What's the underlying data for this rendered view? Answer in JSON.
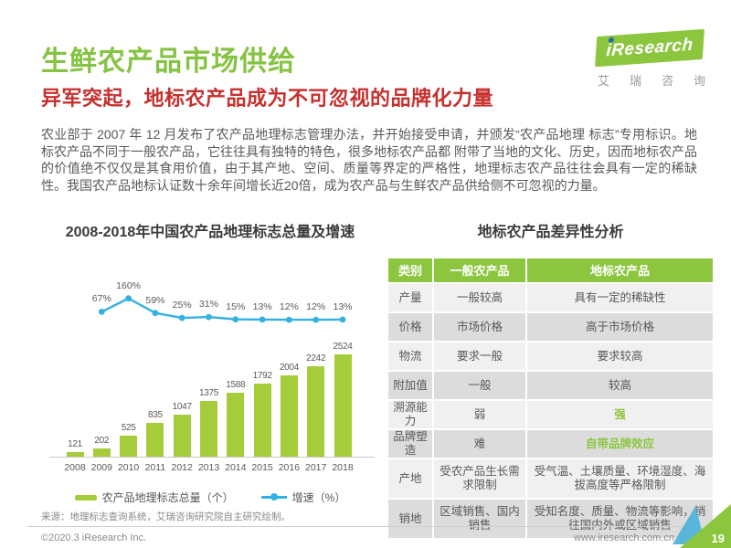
{
  "page": {
    "title": "生鲜农产品市场供给",
    "subtitle": "异军突起，地标农产品成为不可忽视的品牌化力量",
    "body": "农业部于 2007 年 12 月发布了农产品地理标志管理办法，并开始接受申请，并颁发“农产品地理 标志”专用标识。地标农产品不同于一般农产品，它往往具有独特的特色，很多地标农产品都 附带了当地的文化、历史，因而地标农产品的价值绝不仅仅是其食用价值，由于其产地、空间、质量等界定的严格性，地理标志农产品往往会具有一定的稀缺性。我国农产品地标认证数十余年间增长近20倍，成为农产品与生鲜农产品供给侧不可忽视的力量。"
  },
  "logo": {
    "brand": "iResearch",
    "brand_cn_chars": "艾瑞咨询"
  },
  "chart_data": {
    "type": "bar",
    "title": "2008-2018年中国农产品地理标志总量及增速",
    "categories": [
      "2008",
      "2009",
      "2010",
      "2011",
      "2012",
      "2013",
      "2014",
      "2015",
      "2016",
      "2017",
      "2018"
    ],
    "series": [
      {
        "name": "农产品地理标志总量（个）",
        "type": "bar",
        "color": "#a5cd3b",
        "values": [
          121,
          202,
          525,
          835,
          1047,
          1375,
          1588,
          1792,
          2004,
          2242,
          2524
        ]
      },
      {
        "name": "增速（%）",
        "type": "line",
        "color": "#33b1e3",
        "unit": "%",
        "values": [
          null,
          67,
          160,
          59,
          25,
          31,
          15,
          13,
          12,
          12,
          13
        ]
      }
    ],
    "legend_position": "bottom",
    "source": "来源：地理标志查询系统，艾瑞咨询研究院自主研究绘制。"
  },
  "table": {
    "title": "地标农产品差异性分析",
    "headers": [
      "类别",
      "一般农产品",
      "地标农产品"
    ],
    "rows": [
      {
        "label": "产量",
        "general": "一般较高",
        "geo": "具有一定的稀缺性",
        "accent": false,
        "tall": false
      },
      {
        "label": "价格",
        "general": "市场价格",
        "geo": "高于市场价格",
        "accent": false,
        "tall": false
      },
      {
        "label": "物流",
        "general": "要求一般",
        "geo": "要求较高",
        "accent": false,
        "tall": false
      },
      {
        "label": "附加值",
        "general": "一般",
        "geo": "较高",
        "accent": false,
        "tall": false
      },
      {
        "label": "溯源能力",
        "general": "弱",
        "geo": "强",
        "accent": true,
        "tall": false
      },
      {
        "label": "品牌塑造",
        "general": "难",
        "geo": "自带品牌效应",
        "accent": true,
        "tall": false
      },
      {
        "label": "产地",
        "general": "受农产品生长需求限制",
        "geo": "受气温、土壤质量、环境湿度、海拔高度等严格限制",
        "accent": false,
        "tall": true
      },
      {
        "label": "销地",
        "general": "区域销售、国内销售",
        "geo": "受知名度、质量、物流等影响，销往国内外或区域销售",
        "accent": false,
        "tall": true
      }
    ]
  },
  "footer": {
    "copyright": "©2020.3 iResearch Inc.",
    "website": "www.iresearch.com.cn",
    "page_number": "19"
  },
  "colors": {
    "title_green": "#85c342",
    "subtitle_red": "#c5312e",
    "bar_green": "#a5cd3b",
    "line_blue": "#33b1e3",
    "table_header_green": "#8cc63f",
    "body_gray": "#595959",
    "row_light": "#f0f0f0",
    "row_dark": "#dcdcdc"
  }
}
